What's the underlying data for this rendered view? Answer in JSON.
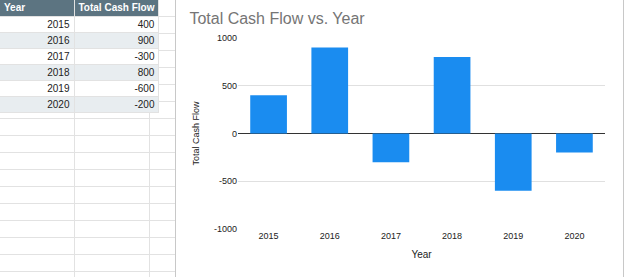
{
  "table": {
    "header": [
      "Year",
      "Total Cash Flow"
    ],
    "rows": [
      [
        2015,
        400
      ],
      [
        2016,
        900
      ],
      [
        2017,
        -300
      ],
      [
        2018,
        800
      ],
      [
        2019,
        -600
      ],
      [
        2020,
        -200
      ]
    ]
  },
  "chart_data": {
    "type": "bar",
    "title": "Total Cash Flow vs. Year",
    "x_label": "Year",
    "y_label": "Total Cash Flow",
    "categories": [
      "2015",
      "2016",
      "2017",
      "2018",
      "2019",
      "2020"
    ],
    "values": [
      400,
      900,
      -300,
      800,
      -600,
      -200
    ],
    "color": "#1a8cf0",
    "ylim": [
      -1000,
      1000
    ],
    "yticks": [
      -1000,
      -500,
      0,
      500,
      1000
    ],
    "grid": true
  }
}
